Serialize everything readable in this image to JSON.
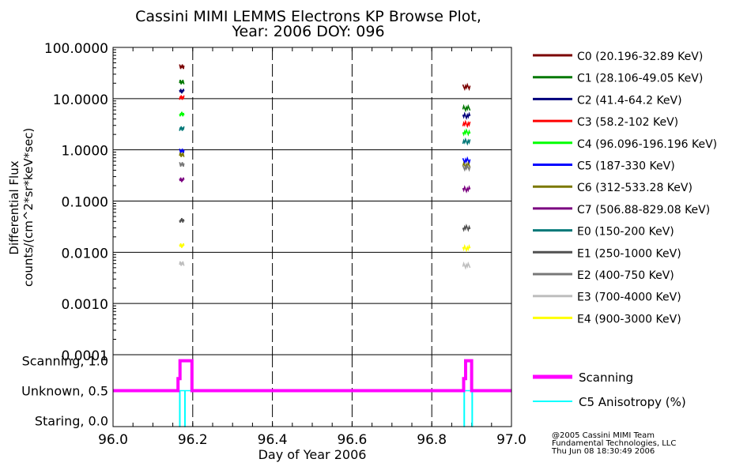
{
  "chart_data": {
    "type": "scatter",
    "title": "Cassini MIMI LEMMS Electrons KP Browse Plot,",
    "subtitle": "Year: 2006 DOY: 096",
    "ylabel_line1": "Differential Flux",
    "ylabel_line2": "counts/(cm^2*sr*keV*sec)",
    "xlabel": "Day of Year 2006",
    "xlim": [
      96.0,
      97.0
    ],
    "x_ticks": [
      "96.0",
      "96.2",
      "96.4",
      "96.6",
      "96.8",
      "97.0"
    ],
    "x_tick_values": [
      96.0,
      96.2,
      96.4,
      96.6,
      96.8,
      97.0
    ],
    "ylim": [
      0.0001,
      100
    ],
    "yscale": "log",
    "y_ticks": [
      "100.0000",
      "10.0000",
      "1.0000",
      "0.1000",
      "0.0100",
      "0.0010",
      "0.0001"
    ],
    "y_tick_values": [
      100,
      10,
      1,
      0.1,
      0.01,
      0.001,
      0.0001
    ],
    "grid": "horizontal solid at decades, vertical dashed at 0.2 days",
    "legend_position": "right",
    "series": [
      {
        "name": "C0 (20.196-32.89 KeV)",
        "color": "#7b0000",
        "segments": [
          {
            "x": [
              96.167,
              96.178
            ],
            "y": 42
          },
          {
            "x": [
              96.878,
              96.896
            ],
            "y": 17
          }
        ]
      },
      {
        "name": "C1 (28.106-49.05 KeV)",
        "color": "#007800",
        "segments": [
          {
            "x": [
              96.167,
              96.178
            ],
            "y": 21
          },
          {
            "x": [
              96.878,
              96.896
            ],
            "y": 6.5
          }
        ]
      },
      {
        "name": "C2 (41.4-64.2 KeV)",
        "color": "#00007b",
        "segments": [
          {
            "x": [
              96.167,
              96.178
            ],
            "y": 14
          },
          {
            "x": [
              96.878,
              96.896
            ],
            "y": 4.6
          }
        ]
      },
      {
        "name": "C3 (58.2-102 KeV)",
        "color": "#ff0000",
        "segments": [
          {
            "x": [
              96.167,
              96.178
            ],
            "y": 10.5
          },
          {
            "x": [
              96.878,
              96.896
            ],
            "y": 3.2
          }
        ]
      },
      {
        "name": "C4 (96.096-196.196 KeV)",
        "color": "#00ff00",
        "segments": [
          {
            "x": [
              96.167,
              96.178
            ],
            "y": 5
          },
          {
            "x": [
              96.878,
              96.896
            ],
            "y": 2.2
          }
        ]
      },
      {
        "name": "C5 (187-330 KeV)",
        "color": "#0000ff",
        "segments": [
          {
            "x": [
              96.167,
              96.178
            ],
            "y": 0.95
          },
          {
            "x": [
              96.878,
              96.896
            ],
            "y": 0.62
          }
        ]
      },
      {
        "name": "C6 (312-533.28 KeV)",
        "color": "#7b7800",
        "segments": [
          {
            "x": [
              96.167,
              96.178
            ],
            "y": 0.8
          },
          {
            "x": [
              96.878,
              96.896
            ],
            "y": 0.5
          }
        ]
      },
      {
        "name": "C7 (506.88-829.08 KeV)",
        "color": "#7b0080",
        "segments": [
          {
            "x": [
              96.167,
              96.178
            ],
            "y": 0.26
          },
          {
            "x": [
              96.878,
              96.896
            ],
            "y": 0.17
          }
        ]
      },
      {
        "name": "E0 (150-200 KeV)",
        "color": "#007878",
        "segments": [
          {
            "x": [
              96.167,
              96.178
            ],
            "y": 2.6
          },
          {
            "x": [
              96.878,
              96.896
            ],
            "y": 1.45
          }
        ]
      },
      {
        "name": "E1 (250-1000 KeV)",
        "color": "#505050",
        "segments": [
          {
            "x": [
              96.167,
              96.178
            ],
            "y": 0.042
          },
          {
            "x": [
              96.878,
              96.896
            ],
            "y": 0.03
          }
        ]
      },
      {
        "name": "E2 (400-750 KeV)",
        "color": "#787878",
        "segments": [
          {
            "x": [
              96.167,
              96.178
            ],
            "y": 0.52
          },
          {
            "x": [
              96.878,
              96.896
            ],
            "y": 0.45
          }
        ]
      },
      {
        "name": "E3 (700-4000 KeV)",
        "color": "#bebebe",
        "segments": [
          {
            "x": [
              96.167,
              96.178
            ],
            "y": 0.006
          },
          {
            "x": [
              96.878,
              96.896
            ],
            "y": 0.0055
          }
        ]
      },
      {
        "name": "E4 (900-3000 KeV)",
        "color": "#ffff00",
        "segments": [
          {
            "x": [
              96.167,
              96.178
            ],
            "y": 0.0135
          },
          {
            "x": [
              96.878,
              96.896
            ],
            "y": 0.012
          }
        ]
      }
    ],
    "lower_panel": {
      "y_ticks": [
        "Scanning, 1.0",
        "Unknown, 0.5",
        "Staring, 0.0"
      ],
      "y_tick_values": [
        1.0,
        0.5,
        0.0
      ],
      "ylim": [
        -0.1,
        1.1
      ],
      "series": [
        {
          "name": "Scanning",
          "color": "#ff00ff",
          "x": [
            96.0,
            96.163,
            96.163,
            96.168,
            96.168,
            96.198,
            96.198,
            96.88,
            96.88,
            96.885,
            96.885,
            96.9,
            96.9,
            97.0
          ],
          "y": [
            0.5,
            0.5,
            0.7,
            0.7,
            1.0,
            1.0,
            0.5,
            0.5,
            0.7,
            0.7,
            1.0,
            1.0,
            0.5,
            0.5
          ]
        },
        {
          "name": "C5 Anisotropy (%)",
          "color": "#00ffff",
          "x": [
            96.167,
            96.167,
            96.168,
            96.168,
            96.18,
            96.18,
            96.181,
            96.181,
            96.881,
            96.881,
            96.882,
            96.882,
            96.901,
            96.901,
            96.902,
            96.902
          ],
          "y": [
            0.5,
            -0.1,
            -0.1,
            0.5,
            0.5,
            -0.1,
            -0.1,
            0.5,
            0.5,
            -0.1,
            -0.1,
            0.5,
            0.5,
            -0.1,
            -0.1,
            0.5
          ]
        }
      ]
    }
  },
  "credits": [
    "@2005 Cassini MIMI Team",
    "Fundamental Technologies, LLC",
    "Thu Jun 08 18:30:49 2006"
  ]
}
